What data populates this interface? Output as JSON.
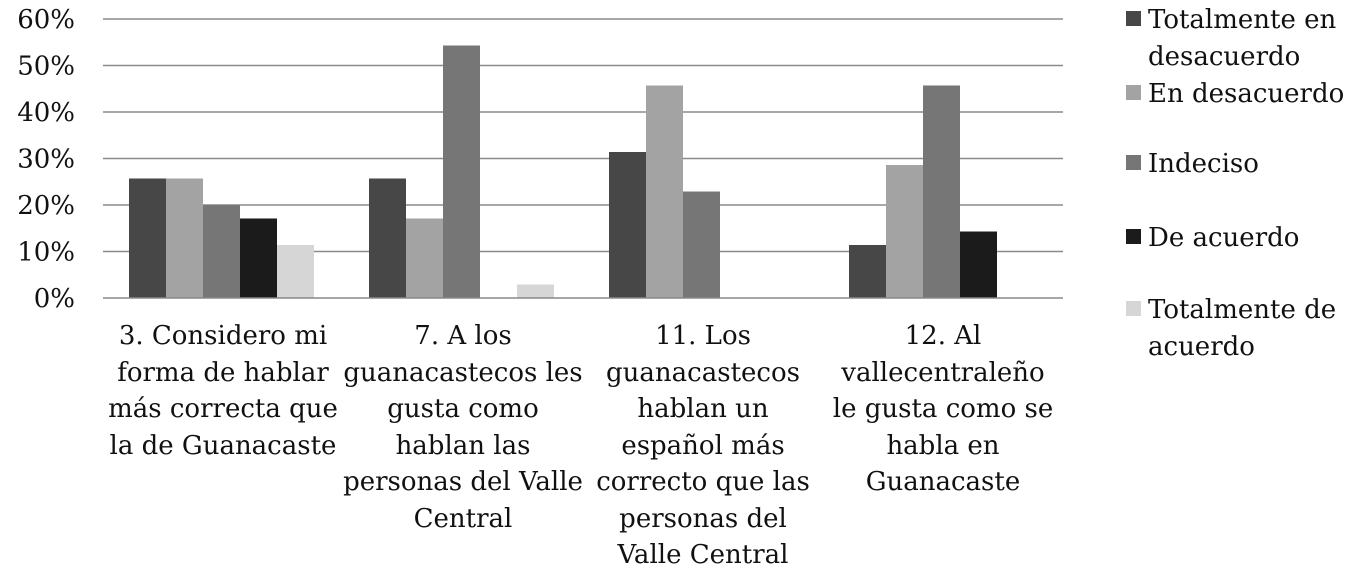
{
  "chart_data": {
    "type": "bar",
    "categories": [
      "3. Considero mi forma de hablar más correcta que la de Guanacaste",
      "7. A los guanacastecos les gusta como hablan las personas del Valle Central",
      "11. Los guanacastecos hablan un español más correcto que las personas del Valle Central",
      "12. Al vallecentraleño le gusta como se habla en Guanacaste"
    ],
    "series": [
      {
        "name": "Totalmente en desacuerdo",
        "color": "#474747",
        "values": [
          25.7,
          25.7,
          31.4,
          11.4
        ]
      },
      {
        "name": "En desacuerdo",
        "color": "#a3a3a3",
        "values": [
          25.7,
          17.1,
          45.7,
          28.6
        ]
      },
      {
        "name": "Indeciso",
        "color": "#767676",
        "values": [
          20.0,
          54.3,
          22.9,
          45.7
        ]
      },
      {
        "name": "De acuerdo",
        "color": "#1b1b1b",
        "values": [
          17.1,
          0,
          0,
          14.3
        ]
      },
      {
        "name": "Totalmente de acuerdo",
        "color": "#d6d6d6",
        "values": [
          11.4,
          2.9,
          0,
          0
        ]
      }
    ],
    "y_ticks": [
      "0%",
      "10%",
      "20%",
      "30%",
      "40%",
      "50%",
      "60%"
    ],
    "ylim": [
      0,
      60
    ],
    "grid": true,
    "legend_position": "right"
  }
}
